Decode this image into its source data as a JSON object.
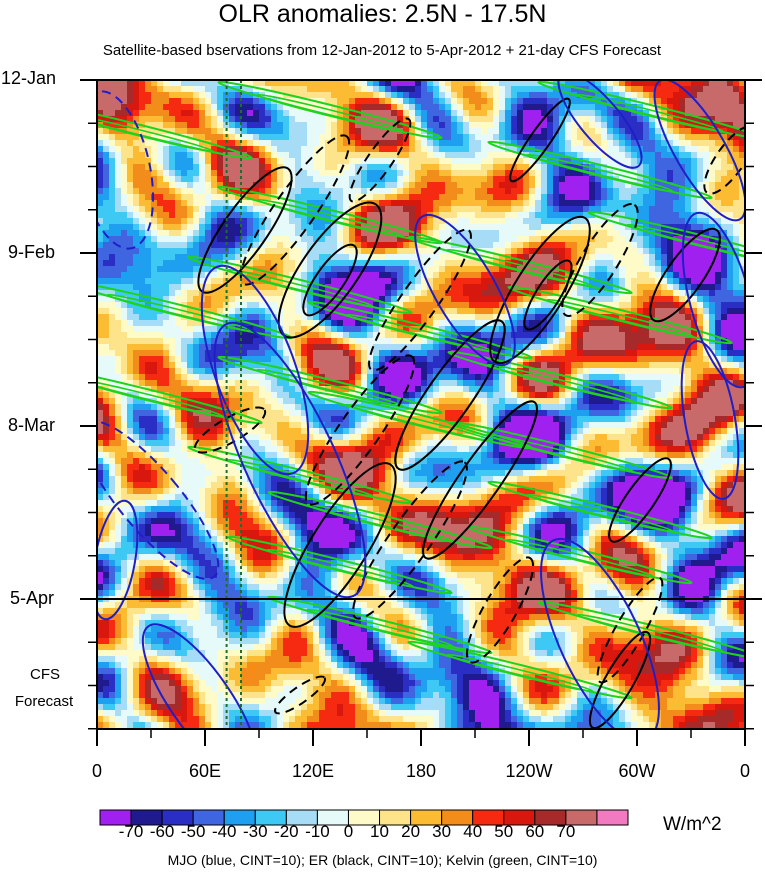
{
  "title": "OLR anomalies: 2.5N - 17.5N",
  "subtitle": "Satellite-based bservations from 12-Jan-2012 to 5-Apr-2012 + 21-day CFS Forecast",
  "y_ticks": [
    "12-Jan",
    "9-Feb",
    "8-Mar",
    "5-Apr"
  ],
  "forecast_label": [
    "CFS",
    "Forecast"
  ],
  "x_ticks": [
    "0",
    "60E",
    "120E",
    "180",
    "120W",
    "60W",
    "0"
  ],
  "colorbar": {
    "labels": [
      "-70",
      "-60",
      "-50",
      "-40",
      "-30",
      "-20",
      "-10",
      "0",
      "10",
      "20",
      "30",
      "40",
      "50",
      "60",
      "70"
    ],
    "colors": [
      "#a020f0",
      "#1f1b8f",
      "#2b2ec4",
      "#3f66e0",
      "#1f9ff0",
      "#3ec9f5",
      "#a6dcf5",
      "#e6fafa",
      "#fffbc8",
      "#fde38a",
      "#fbbb33",
      "#f28c1b",
      "#f52a10",
      "#d8180e",
      "#a62a2a",
      "#c86a6a",
      "#f27ac0"
    ],
    "units": "W/m^2"
  },
  "footer": "MJO (blue, CINT=10); ER (black, CINT=10); Kelvin (green, CINT=10)",
  "chart_data": {
    "type": "heatmap",
    "title": "OLR anomalies: 2.5N - 17.5N",
    "subtitle": "Satellite-based bservations from 12-Jan-2012 to 5-Apr-2012 + 21-day CFS Forecast",
    "x_axis": {
      "ticks": [
        "0",
        "60E",
        "120E",
        "180",
        "120W",
        "60W",
        "0"
      ],
      "range_deg_lon": [
        0,
        360
      ]
    },
    "y_axis": {
      "ticks": [
        "12-Jan",
        "9-Feb",
        "8-Mar",
        "5-Apr"
      ],
      "range": [
        "12-Jan-2012",
        "26-Apr-2012"
      ],
      "forecast_start": "5-Apr"
    },
    "units": "W/m^2",
    "value_range": [
      -70,
      70
    ],
    "reference_lines_lon": [
      72,
      80
    ],
    "contours": {
      "mjo": {
        "color": "#1f1fc8",
        "cint": 10
      },
      "er": {
        "color": "#000000",
        "cint": 10
      },
      "kelvin": {
        "color": "#1fd21f",
        "cint": 10
      }
    }
  }
}
